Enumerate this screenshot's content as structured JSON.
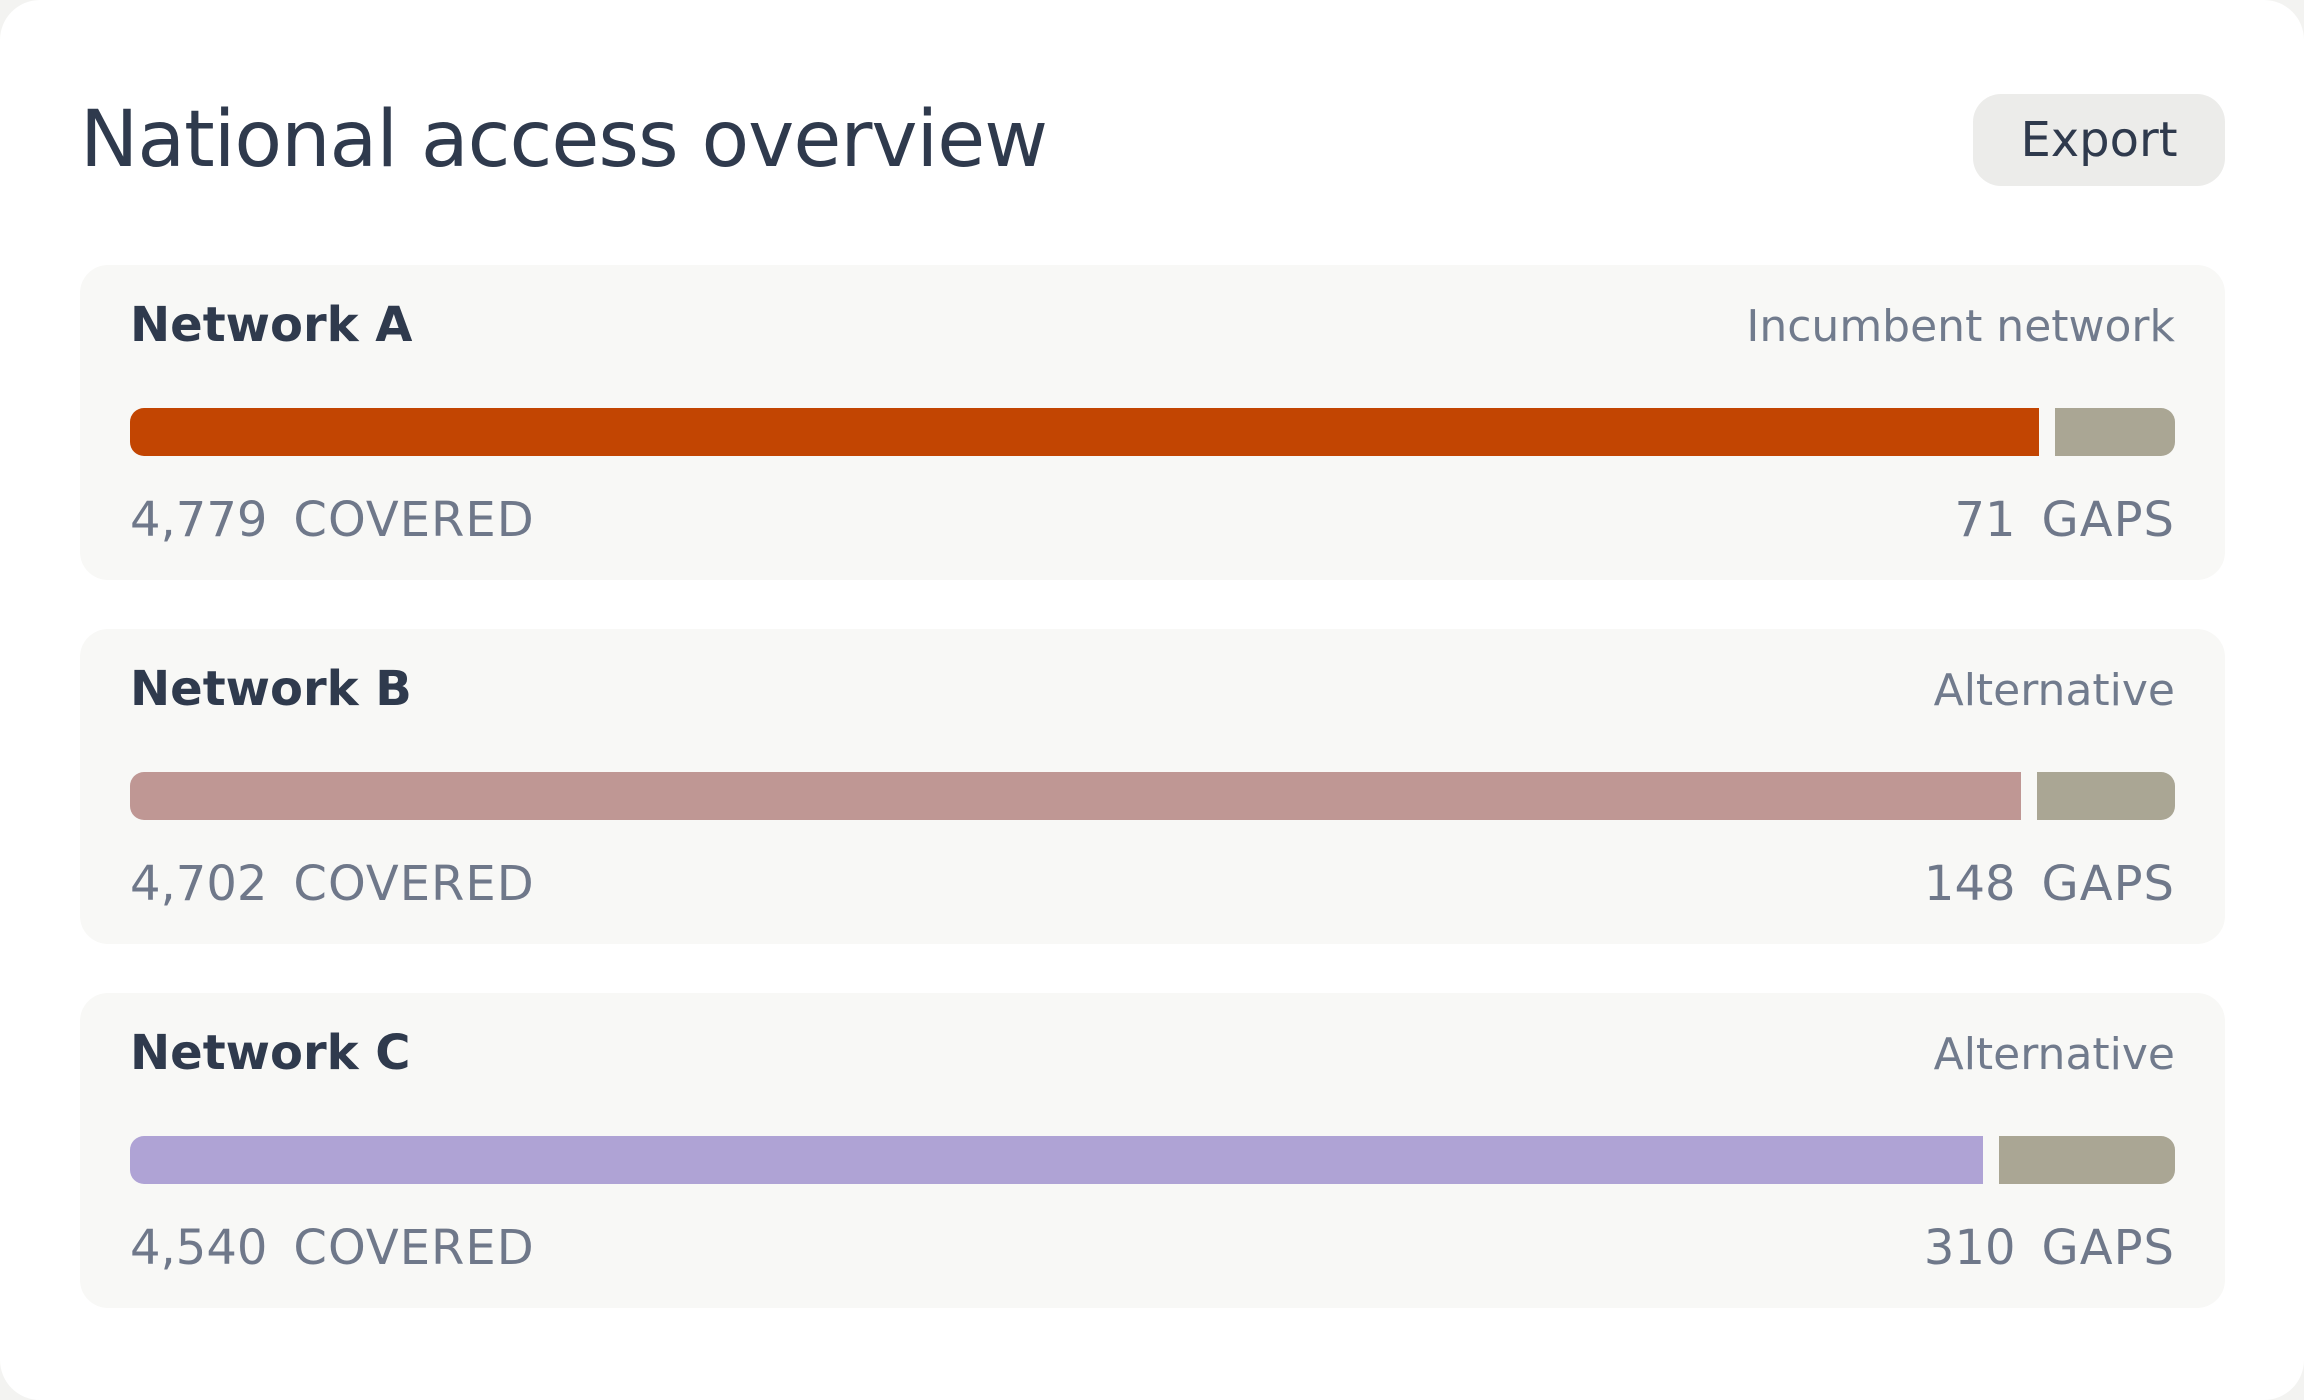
{
  "header": {
    "title": "National access overview",
    "export_label": "Export"
  },
  "networks": [
    {
      "name": "Network A",
      "tag": "Incumbent network",
      "covered": "4,779",
      "covered_value": 4779,
      "covered_label": "COVERED",
      "gaps": "71",
      "gaps_value": 71,
      "gaps_label": "GAPS",
      "color": "#c24502"
    },
    {
      "name": "Network B",
      "tag": "Alternative",
      "covered": "4,702",
      "covered_value": 4702,
      "covered_label": "COVERED",
      "gaps": "148",
      "gaps_value": 148,
      "gaps_label": "GAPS",
      "color": "#bf9794"
    },
    {
      "name": "Network C",
      "tag": "Alternative",
      "covered": "4,540",
      "covered_value": 4540,
      "covered_label": "COVERED",
      "gaps": "310",
      "gaps_value": 310,
      "gaps_label": "GAPS",
      "color": "#afa3d5"
    }
  ],
  "colors": {
    "gaps": "#aaa694",
    "title": "#2f3a4d",
    "muted": "#6f788a"
  }
}
